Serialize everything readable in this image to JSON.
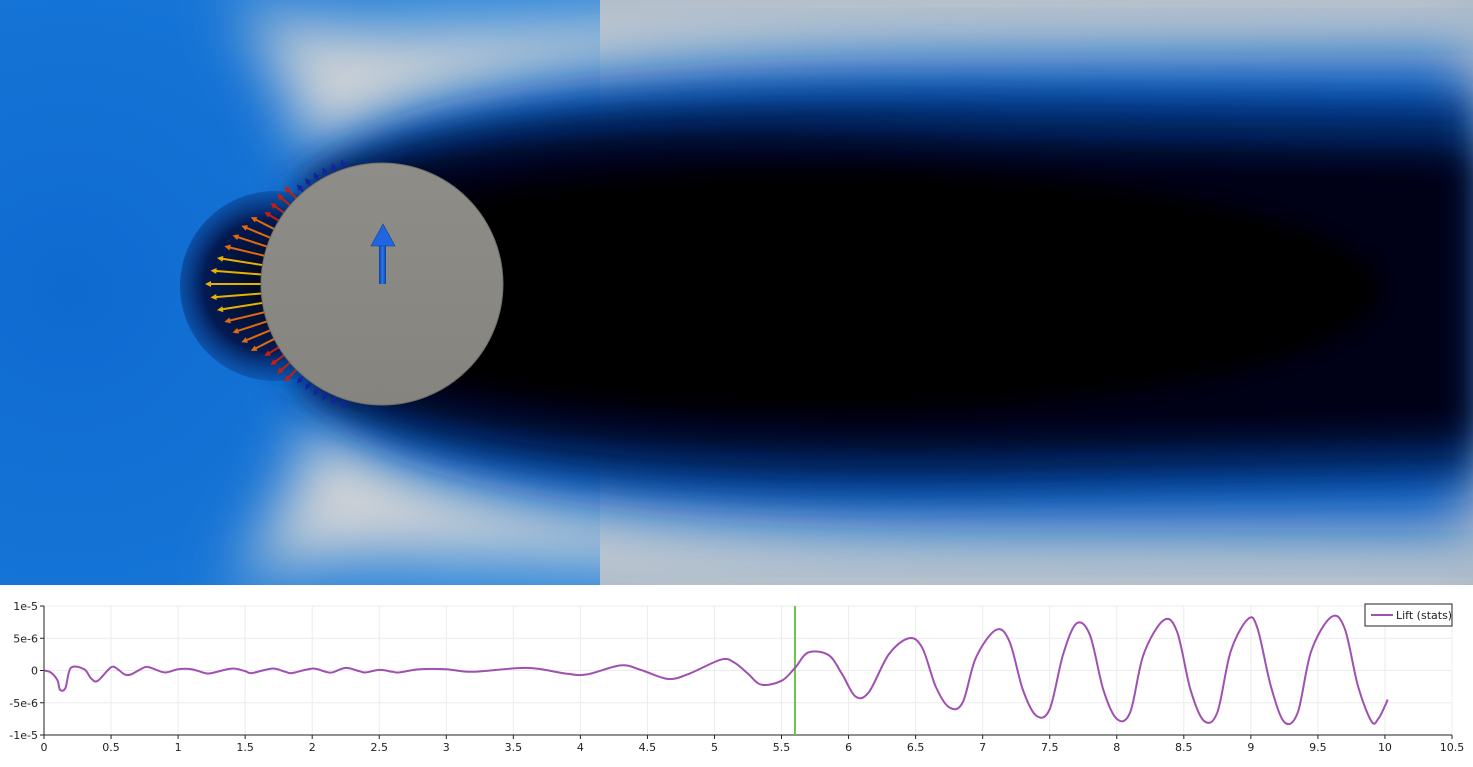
{
  "viewport": {
    "scene": "flow-around-cylinder",
    "colors": {
      "wake": "#000000",
      "deep_blue": "#001a52",
      "mid_blue": "#0a5fc4",
      "light": "#c8ccd0",
      "cylinder": "#8a8985",
      "lift_arrow": "#1a5ed8",
      "force_arrow_hot": "#e8b000",
      "force_arrow_warm": "#e06a10",
      "force_arrow_red": "#c81e10",
      "force_arrow_cold": "#1422a0"
    }
  },
  "chart_data": {
    "type": "line",
    "xlim": [
      0,
      10.5
    ],
    "ylim": [
      -1e-05,
      1e-05
    ],
    "x_ticks": [
      "0",
      "0.5",
      "1",
      "1.5",
      "2",
      "2.5",
      "3",
      "3.5",
      "4",
      "4.5",
      "5",
      "5.5",
      "6",
      "6.5",
      "7",
      "7.5",
      "8",
      "8.5",
      "9",
      "9.5",
      "10",
      "10.5"
    ],
    "x_tick_values": [
      0,
      0.5,
      1,
      1.5,
      2,
      2.5,
      3,
      3.5,
      4,
      4.5,
      5,
      5.5,
      6,
      6.5,
      7,
      7.5,
      8,
      8.5,
      9,
      9.5,
      10,
      10.5
    ],
    "y_ticks": [
      "1e-5",
      "5e-6",
      "0",
      "-5e-6",
      "-1e-5"
    ],
    "y_tick_values": [
      1e-05,
      5e-06,
      0,
      -5e-06,
      -1e-05
    ],
    "grid": true,
    "legend_placement": "top-right",
    "time_marker": 5.6,
    "time_marker_color": "#6cc24a",
    "series": [
      {
        "name": "Lift (stats)",
        "color": "#a050b0",
        "points": [
          [
            0,
            0
          ],
          [
            0.05,
            -3e-07
          ],
          [
            0.1,
            -1.5e-06
          ],
          [
            0.12,
            -3e-06
          ],
          [
            0.16,
            -2.7e-06
          ],
          [
            0.2,
            4e-07
          ],
          [
            0.3,
            2e-07
          ],
          [
            0.35,
            -1.2e-06
          ],
          [
            0.4,
            -1.6e-06
          ],
          [
            0.5,
            5e-07
          ],
          [
            0.55,
            2e-07
          ],
          [
            0.6,
            -6e-07
          ],
          [
            0.65,
            -6e-07
          ],
          [
            0.75,
            5e-07
          ],
          [
            0.8,
            4e-07
          ],
          [
            0.9,
            -3e-07
          ],
          [
            1.0,
            2e-07
          ],
          [
            1.1,
            2e-07
          ],
          [
            1.2,
            -4e-07
          ],
          [
            1.25,
            -4e-07
          ],
          [
            1.4,
            3e-07
          ],
          [
            1.5,
            -1e-07
          ],
          [
            1.55,
            -4e-07
          ],
          [
            1.7,
            3e-07
          ],
          [
            1.8,
            -2e-07
          ],
          [
            1.85,
            -4e-07
          ],
          [
            2.0,
            3e-07
          ],
          [
            2.1,
            -2e-07
          ],
          [
            2.15,
            -3e-07
          ],
          [
            2.25,
            4e-07
          ],
          [
            2.35,
            -1e-07
          ],
          [
            2.4,
            -3e-07
          ],
          [
            2.5,
            1e-07
          ],
          [
            2.6,
            -2e-07
          ],
          [
            2.65,
            -3e-07
          ],
          [
            2.8,
            2e-07
          ],
          [
            3.0,
            2e-07
          ],
          [
            3.2,
            -2e-07
          ],
          [
            3.6,
            4e-07
          ],
          [
            3.9,
            -5e-07
          ],
          [
            4.05,
            -6e-07
          ],
          [
            4.3,
            8e-07
          ],
          [
            4.45,
            1e-07
          ],
          [
            4.65,
            -1.3e-06
          ],
          [
            4.8,
            -6e-07
          ],
          [
            5.05,
            1.7e-06
          ],
          [
            5.15,
            1.2e-06
          ],
          [
            5.25,
            -5e-07
          ],
          [
            5.35,
            -2.2e-06
          ],
          [
            5.5,
            -1.6e-06
          ],
          [
            5.6,
            4e-07
          ],
          [
            5.7,
            2.8e-06
          ],
          [
            5.85,
            2.4e-06
          ],
          [
            5.95,
            -5e-07
          ],
          [
            6.05,
            -4e-06
          ],
          [
            6.15,
            -3.4e-06
          ],
          [
            6.3,
            2.5e-06
          ],
          [
            6.45,
            5e-06
          ],
          [
            6.55,
            3.5e-06
          ],
          [
            6.65,
            -2.5e-06
          ],
          [
            6.75,
            -5.7e-06
          ],
          [
            6.85,
            -5e-06
          ],
          [
            6.95,
            2e-06
          ],
          [
            7.1,
            6.3e-06
          ],
          [
            7.2,
            4.5e-06
          ],
          [
            7.3,
            -3e-06
          ],
          [
            7.4,
            -7e-06
          ],
          [
            7.5,
            -6e-06
          ],
          [
            7.6,
            2.5e-06
          ],
          [
            7.7,
            7.3e-06
          ],
          [
            7.8,
            5.5e-06
          ],
          [
            7.9,
            -3e-06
          ],
          [
            8.0,
            -7.5e-06
          ],
          [
            8.1,
            -6.5e-06
          ],
          [
            8.2,
            2.5e-06
          ],
          [
            8.35,
            7.8e-06
          ],
          [
            8.45,
            6e-06
          ],
          [
            8.55,
            -3e-06
          ],
          [
            8.65,
            -7.8e-06
          ],
          [
            8.75,
            -6.5e-06
          ],
          [
            8.85,
            3e-06
          ],
          [
            8.98,
            8e-06
          ],
          [
            9.05,
            6.5e-06
          ],
          [
            9.15,
            -2.5e-06
          ],
          [
            9.25,
            -8e-06
          ],
          [
            9.35,
            -6.5e-06
          ],
          [
            9.45,
            3e-06
          ],
          [
            9.6,
            8.3e-06
          ],
          [
            9.7,
            6.5e-06
          ],
          [
            9.8,
            -2.5e-06
          ],
          [
            9.9,
            -7.9e-06
          ],
          [
            9.95,
            -7.5e-06
          ],
          [
            10.0,
            -5.5e-06
          ],
          [
            10.02,
            -4.5e-06
          ]
        ]
      }
    ]
  }
}
